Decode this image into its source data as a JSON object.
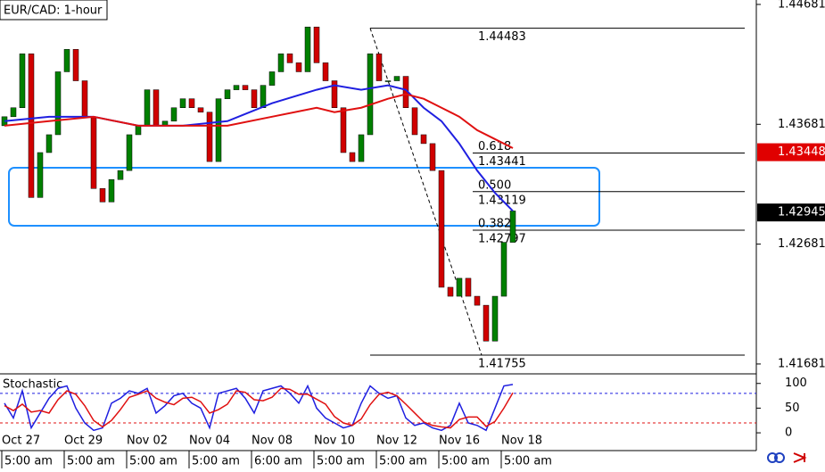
{
  "chart_data": [
    {
      "type": "candlestick",
      "title": "EUR/CAD: 1-hour",
      "ylim": [
        1.41606,
        1.44718
      ],
      "yticks": [
        1.44681,
        1.43681,
        1.42681,
        1.41681
      ],
      "up_color": "#008000",
      "down_color": "#d00000",
      "open": [
        1.43669,
        1.43744,
        1.43819,
        1.44269,
        1.4307,
        1.43445,
        1.43594,
        1.44119,
        1.44306,
        1.44044,
        1.43744,
        1.43145,
        1.43033,
        1.4322,
        1.43295,
        1.43594,
        1.43669,
        1.43969,
        1.43669,
        1.43707,
        1.43819,
        1.43894,
        1.43819,
        1.43782,
        1.4337,
        1.43894,
        1.43969,
        1.44006,
        1.43969,
        1.43819,
        1.44006,
        1.44119,
        1.44269,
        1.44194,
        1.44119,
        1.44493,
        1.44194,
        1.44044,
        1.43819,
        1.43445,
        1.4337,
        1.43594,
        1.44269,
        1.44044,
        1.44044,
        1.44081,
        1.43819,
        1.43594,
        1.4352,
        1.43295,
        1.42321,
        1.42246,
        1.42396,
        1.42246,
        1.42171,
        1.41872,
        1.42246,
        1.42696
      ],
      "close": [
        1.43744,
        1.43819,
        1.44269,
        1.4307,
        1.43445,
        1.43594,
        1.44119,
        1.44306,
        1.44044,
        1.43744,
        1.43145,
        1.43033,
        1.4322,
        1.43295,
        1.43594,
        1.43669,
        1.43969,
        1.43669,
        1.43707,
        1.43819,
        1.43894,
        1.43819,
        1.43782,
        1.4337,
        1.43894,
        1.43969,
        1.44006,
        1.43969,
        1.43819,
        1.44006,
        1.44119,
        1.44269,
        1.44194,
        1.44119,
        1.44493,
        1.44194,
        1.44044,
        1.43819,
        1.43445,
        1.4337,
        1.43594,
        1.44269,
        1.44044,
        1.44044,
        1.44081,
        1.43819,
        1.43594,
        1.4352,
        1.43295,
        1.42321,
        1.42246,
        1.42396,
        1.42246,
        1.42171,
        1.41872,
        1.42246,
        1.42696,
        1.42958
      ],
      "moving_averages": [
        {
          "color": "#1f1fe0",
          "x": [
            0,
            5,
            10,
            15,
            20,
            25,
            30,
            35,
            37,
            40,
            43,
            45,
            47,
            49,
            51,
            53,
            55,
            57
          ],
          "values": [
            1.43707,
            1.43744,
            1.43744,
            1.43669,
            1.43669,
            1.43707,
            1.43857,
            1.43969,
            1.44006,
            1.43969,
            1.44006,
            1.43969,
            1.43819,
            1.43707,
            1.4352,
            1.43295,
            1.43108,
            1.42958
          ]
        },
        {
          "color": "#e01010",
          "x": [
            0,
            5,
            10,
            15,
            20,
            25,
            30,
            35,
            37,
            40,
            43,
            45,
            47,
            49,
            51,
            53,
            55,
            57
          ],
          "values": [
            1.43669,
            1.43707,
            1.43744,
            1.43669,
            1.43669,
            1.43669,
            1.43744,
            1.43819,
            1.43782,
            1.43819,
            1.43894,
            1.43932,
            1.43894,
            1.43819,
            1.43744,
            1.43632,
            1.43557,
            1.43482
          ]
        }
      ],
      "fib_levels": [
        {
          "value": 1.44483,
          "price_label": "1.44483"
        },
        {
          "value": 1.43441,
          "ratio": "0.618",
          "price_label": "1.43441"
        },
        {
          "value": 1.43119,
          "ratio": "0.500",
          "price_label": "1.43119"
        },
        {
          "value": 1.42797,
          "ratio": "0.382",
          "price_label": "1.42797"
        },
        {
          "value": 1.41755,
          "price_label": "1.41755"
        }
      ],
      "price_markers": [
        {
          "value": 1.43448,
          "color": "#e00000"
        },
        {
          "value": 1.42945,
          "color": "#000000"
        }
      ],
      "x_labels": [
        {
          "index": 0,
          "date": "Oct 27",
          "time": "5:00 am"
        },
        {
          "index": 7,
          "date": "Oct 29",
          "time": "5:00 am"
        },
        {
          "index": 14,
          "date": "Nov 02",
          "time": "5:00 am"
        },
        {
          "index": 21,
          "date": "Nov 04",
          "time": "5:00 am"
        },
        {
          "index": 28,
          "date": "Nov 08",
          "time": "6:00 am"
        },
        {
          "index": 35,
          "date": "Nov 10",
          "time": "5:00 am"
        },
        {
          "index": 42,
          "date": "Nov 12",
          "time": "5:00 am"
        },
        {
          "index": 49,
          "date": "Nov 16",
          "time": "5:00 am"
        },
        {
          "index": 56,
          "date": "Nov 18",
          "time": "5:00 am"
        }
      ]
    },
    {
      "type": "stochastic",
      "title": "Stochastic",
      "ylim": [
        -36,
        114
      ],
      "yticks": [
        100,
        50,
        0
      ],
      "levels": [
        {
          "value": 80,
          "color": "#1f1fe0"
        },
        {
          "value": 20,
          "color": "#e01010"
        }
      ],
      "series": [
        {
          "color": "#1f1fe0",
          "values": [
            60,
            30,
            85,
            10,
            40,
            70,
            90,
            95,
            50,
            20,
            5,
            10,
            60,
            70,
            85,
            80,
            90,
            40,
            55,
            75,
            80,
            60,
            50,
            10,
            80,
            85,
            90,
            70,
            40,
            85,
            90,
            95,
            80,
            60,
            95,
            50,
            30,
            20,
            10,
            15,
            60,
            95,
            80,
            70,
            75,
            30,
            15,
            20,
            10,
            5,
            15,
            60,
            20,
            15,
            5,
            50,
            95,
            98
          ]
        },
        {
          "color": "#e01010",
          "values": [
            55,
            45,
            58,
            42,
            45,
            40,
            67,
            85,
            78,
            55,
            25,
            12,
            25,
            47,
            72,
            78,
            85,
            70,
            62,
            57,
            70,
            72,
            63,
            40,
            47,
            58,
            85,
            82,
            67,
            65,
            72,
            90,
            88,
            78,
            78,
            68,
            58,
            33,
            20,
            15,
            28,
            57,
            78,
            82,
            75,
            58,
            40,
            22,
            15,
            12,
            10,
            27,
            32,
            32,
            13,
            23,
            50,
            81
          ]
        }
      ]
    }
  ]
}
